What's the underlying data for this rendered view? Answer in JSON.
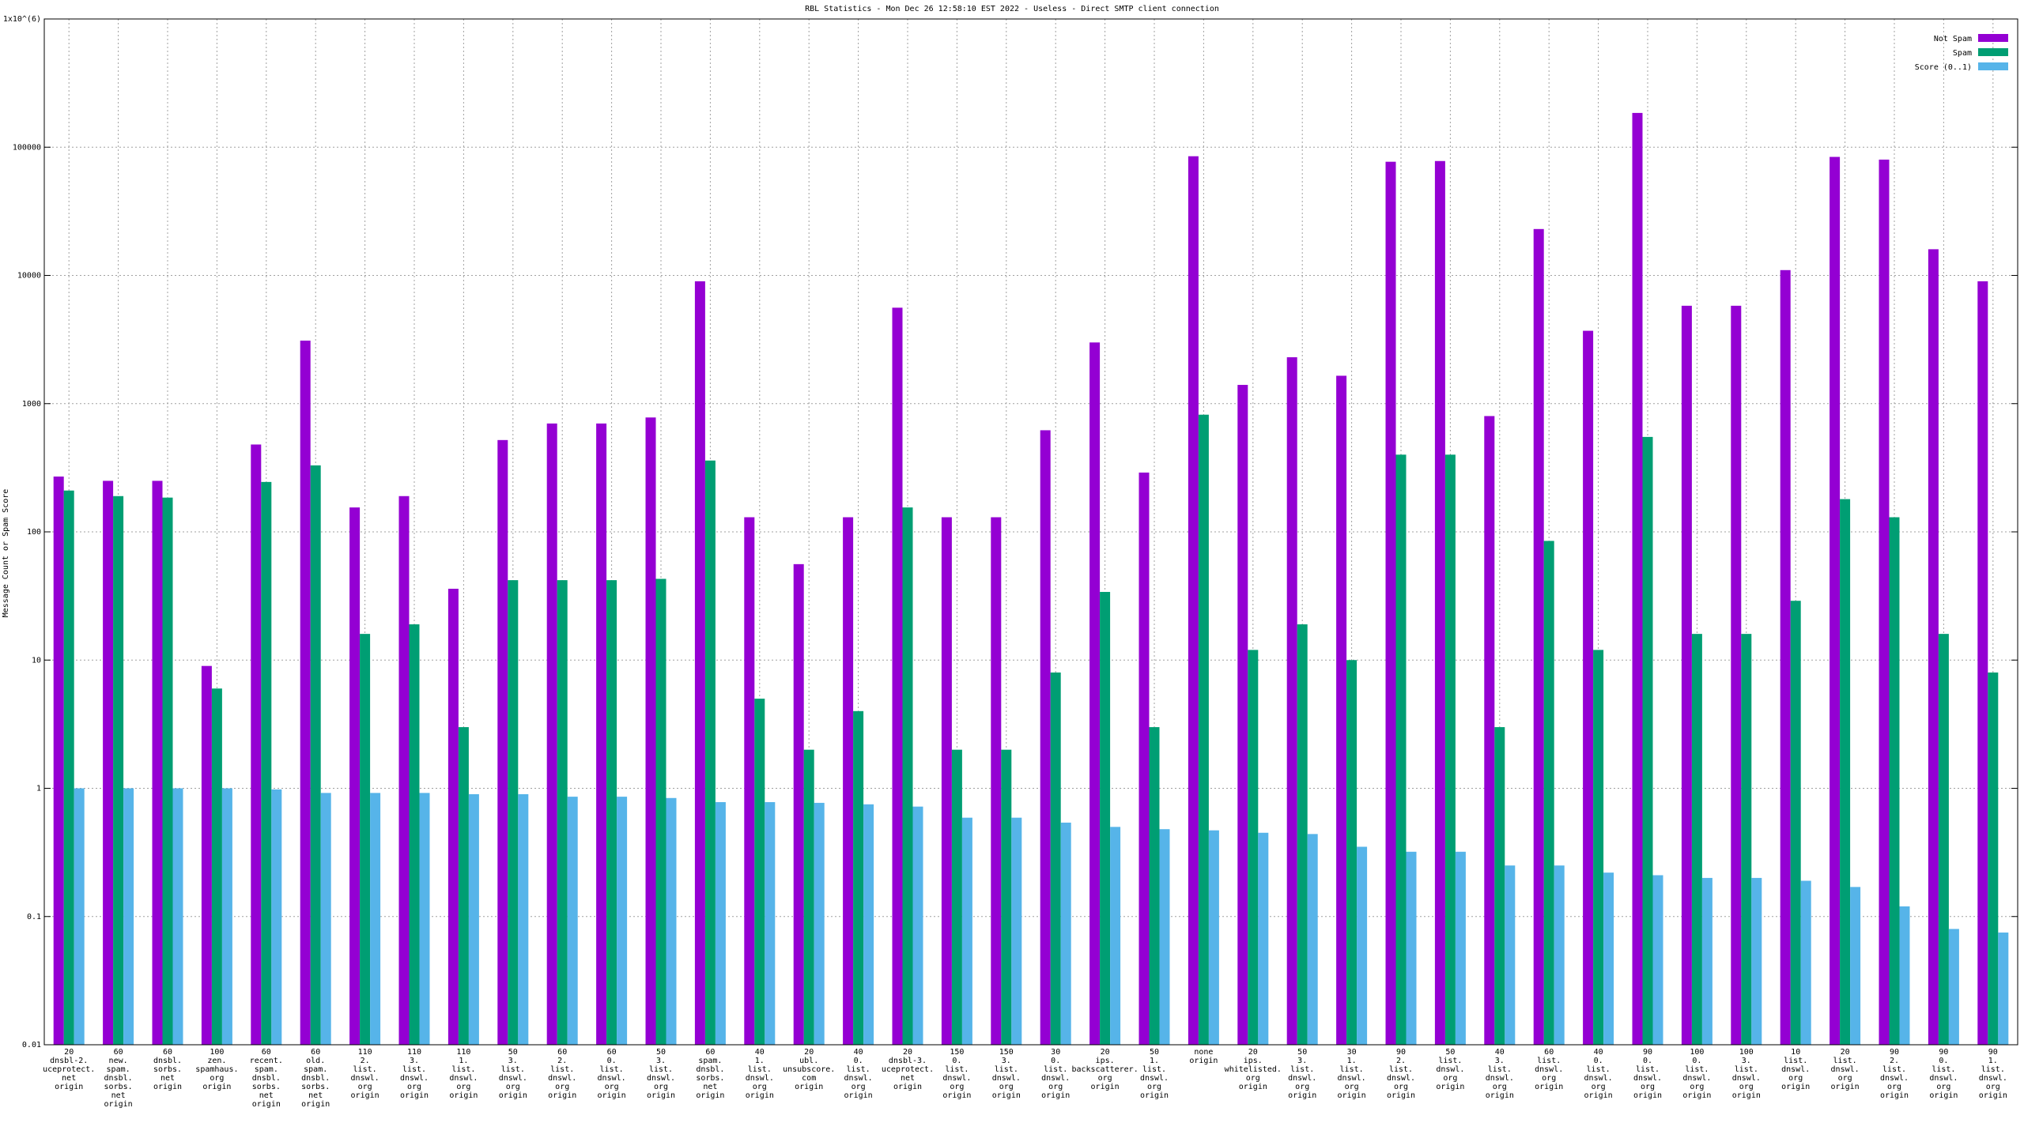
{
  "chart_data": {
    "type": "bar",
    "title": "RBL Statistics - Mon Dec 26 12:58:10 EST 2022 - Useless - Direct SMTP client connection",
    "y_label": "Message Count or Spam Score",
    "log_scale": true,
    "grid": true,
    "legend_position": "top-right",
    "ylim": [
      0.01,
      1000000
    ],
    "yticks": [
      0.01,
      0.1,
      1,
      10,
      100,
      1000,
      10000,
      100000,
      {
        "value": 1000000,
        "label": "1x10^(6)"
      }
    ],
    "categories": [
      [
        "20",
        "dnsbl-2.",
        "uceprotect.",
        "net",
        "origin"
      ],
      [
        "60",
        "new.",
        "spam.",
        "dnsbl.",
        "sorbs.",
        "net",
        "origin"
      ],
      [
        "60",
        "dnsbl.",
        "sorbs.",
        "net",
        "origin"
      ],
      [
        "100",
        "zen.",
        "spamhaus.",
        "org",
        "origin"
      ],
      [
        "60",
        "recent.",
        "spam.",
        "dnsbl.",
        "sorbs.",
        "net",
        "origin"
      ],
      [
        "60",
        "old.",
        "spam.",
        "dnsbl.",
        "sorbs.",
        "net",
        "origin"
      ],
      [
        "110",
        "2.",
        "list.",
        "dnswl.",
        "org",
        "origin"
      ],
      [
        "110",
        "3.",
        "list.",
        "dnswl.",
        "org",
        "origin"
      ],
      [
        "110",
        "1.",
        "list.",
        "dnswl.",
        "org",
        "origin"
      ],
      [
        "50",
        "3.",
        "list.",
        "dnswl.",
        "org",
        "origin"
      ],
      [
        "60",
        "2.",
        "list.",
        "dnswl.",
        "org",
        "origin"
      ],
      [
        "60",
        "0.",
        "list.",
        "dnswl.",
        "org",
        "origin"
      ],
      [
        "50",
        "3.",
        "list.",
        "dnswl.",
        "org",
        "origin"
      ],
      [
        "60",
        "spam.",
        "dnsbl.",
        "sorbs.",
        "net",
        "origin"
      ],
      [
        "40",
        "1.",
        "list.",
        "dnswl.",
        "org",
        "origin"
      ],
      [
        "20",
        "ubl.",
        "unsubscore.",
        "com",
        "origin"
      ],
      [
        "40",
        "0.",
        "list.",
        "dnswl.",
        "org",
        "origin"
      ],
      [
        "20",
        "dnsbl-3.",
        "uceprotect.",
        "net",
        "origin"
      ],
      [
        "150",
        "0.",
        "list.",
        "dnswl.",
        "org",
        "origin"
      ],
      [
        "150",
        "3.",
        "list.",
        "dnswl.",
        "org",
        "origin"
      ],
      [
        "30",
        "0.",
        "list.",
        "dnswl.",
        "org",
        "origin"
      ],
      [
        "20",
        "ips.",
        "backscatterer.",
        "org",
        "origin"
      ],
      [
        "50",
        "1.",
        "list.",
        "dnswl.",
        "org",
        "origin"
      ],
      [
        "none",
        "origin"
      ],
      [
        "20",
        "ips.",
        "whitelisted.",
        "org",
        "origin"
      ],
      [
        "50",
        "3.",
        "list.",
        "dnswl.",
        "org",
        "origin"
      ],
      [
        "30",
        "1.",
        "list.",
        "dnswl.",
        "org",
        "origin"
      ],
      [
        "90",
        "2.",
        "list.",
        "dnswl.",
        "org",
        "origin"
      ],
      [
        "50",
        "list.",
        "dnswl.",
        "org",
        "origin"
      ],
      [
        "40",
        "3.",
        "list.",
        "dnswl.",
        "org",
        "origin"
      ],
      [
        "60",
        "list.",
        "dnswl.",
        "org",
        "origin"
      ],
      [
        "40",
        "0.",
        "list.",
        "dnswl.",
        "org",
        "origin"
      ],
      [
        "90",
        "0.",
        "list.",
        "dnswl.",
        "org",
        "origin"
      ],
      [
        "100",
        "0.",
        "list.",
        "dnswl.",
        "org",
        "origin"
      ],
      [
        "100",
        "3.",
        "list.",
        "dnswl.",
        "org",
        "origin"
      ],
      [
        "10",
        "list.",
        "dnswl.",
        "org",
        "origin"
      ],
      [
        "20",
        "list.",
        "dnswl.",
        "org",
        "origin"
      ],
      [
        "90",
        "2.",
        "list.",
        "dnswl.",
        "org",
        "origin"
      ],
      [
        "90",
        "0.",
        "list.",
        "dnswl.",
        "org",
        "origin"
      ],
      [
        "90",
        "1.",
        "list.",
        "dnswl.",
        "org",
        "origin"
      ]
    ],
    "series": [
      {
        "name": "Not Spam",
        "color": "#9400d3",
        "values": [
          270,
          250,
          250,
          9,
          480,
          3100,
          155,
          190,
          36,
          520,
          700,
          700,
          780,
          9000,
          130,
          56,
          130,
          5600,
          130,
          130,
          620,
          3000,
          290,
          85000,
          1400,
          2300,
          1650,
          77000,
          78000,
          800,
          23000,
          3700,
          185000,
          5800,
          5800,
          11000,
          84000,
          80000,
          16000,
          9000
        ]
      },
      {
        "name": "Spam",
        "color": "#009e73",
        "values": [
          210,
          190,
          185,
          6,
          245,
          330,
          16,
          19,
          3,
          42,
          42,
          42,
          43,
          360,
          5,
          2,
          4,
          155,
          2,
          2,
          8,
          34,
          3,
          820,
          12,
          19,
          10,
          400,
          400,
          3,
          85,
          12,
          550,
          16,
          16,
          29,
          180,
          130,
          16,
          8
        ]
      },
      {
        "name": "Score (0..1)",
        "color": "#56b4e9",
        "values": [
          1.0,
          1.0,
          1.0,
          1.0,
          0.98,
          0.92,
          0.92,
          0.92,
          0.9,
          0.9,
          0.86,
          0.86,
          0.84,
          0.78,
          0.78,
          0.77,
          0.75,
          0.72,
          0.59,
          0.59,
          0.54,
          0.5,
          0.48,
          0.47,
          0.45,
          0.44,
          0.35,
          0.32,
          0.32,
          0.25,
          0.25,
          0.22,
          0.21,
          0.2,
          0.2,
          0.19,
          0.17,
          0.12,
          0.08,
          0.075
        ]
      }
    ]
  }
}
